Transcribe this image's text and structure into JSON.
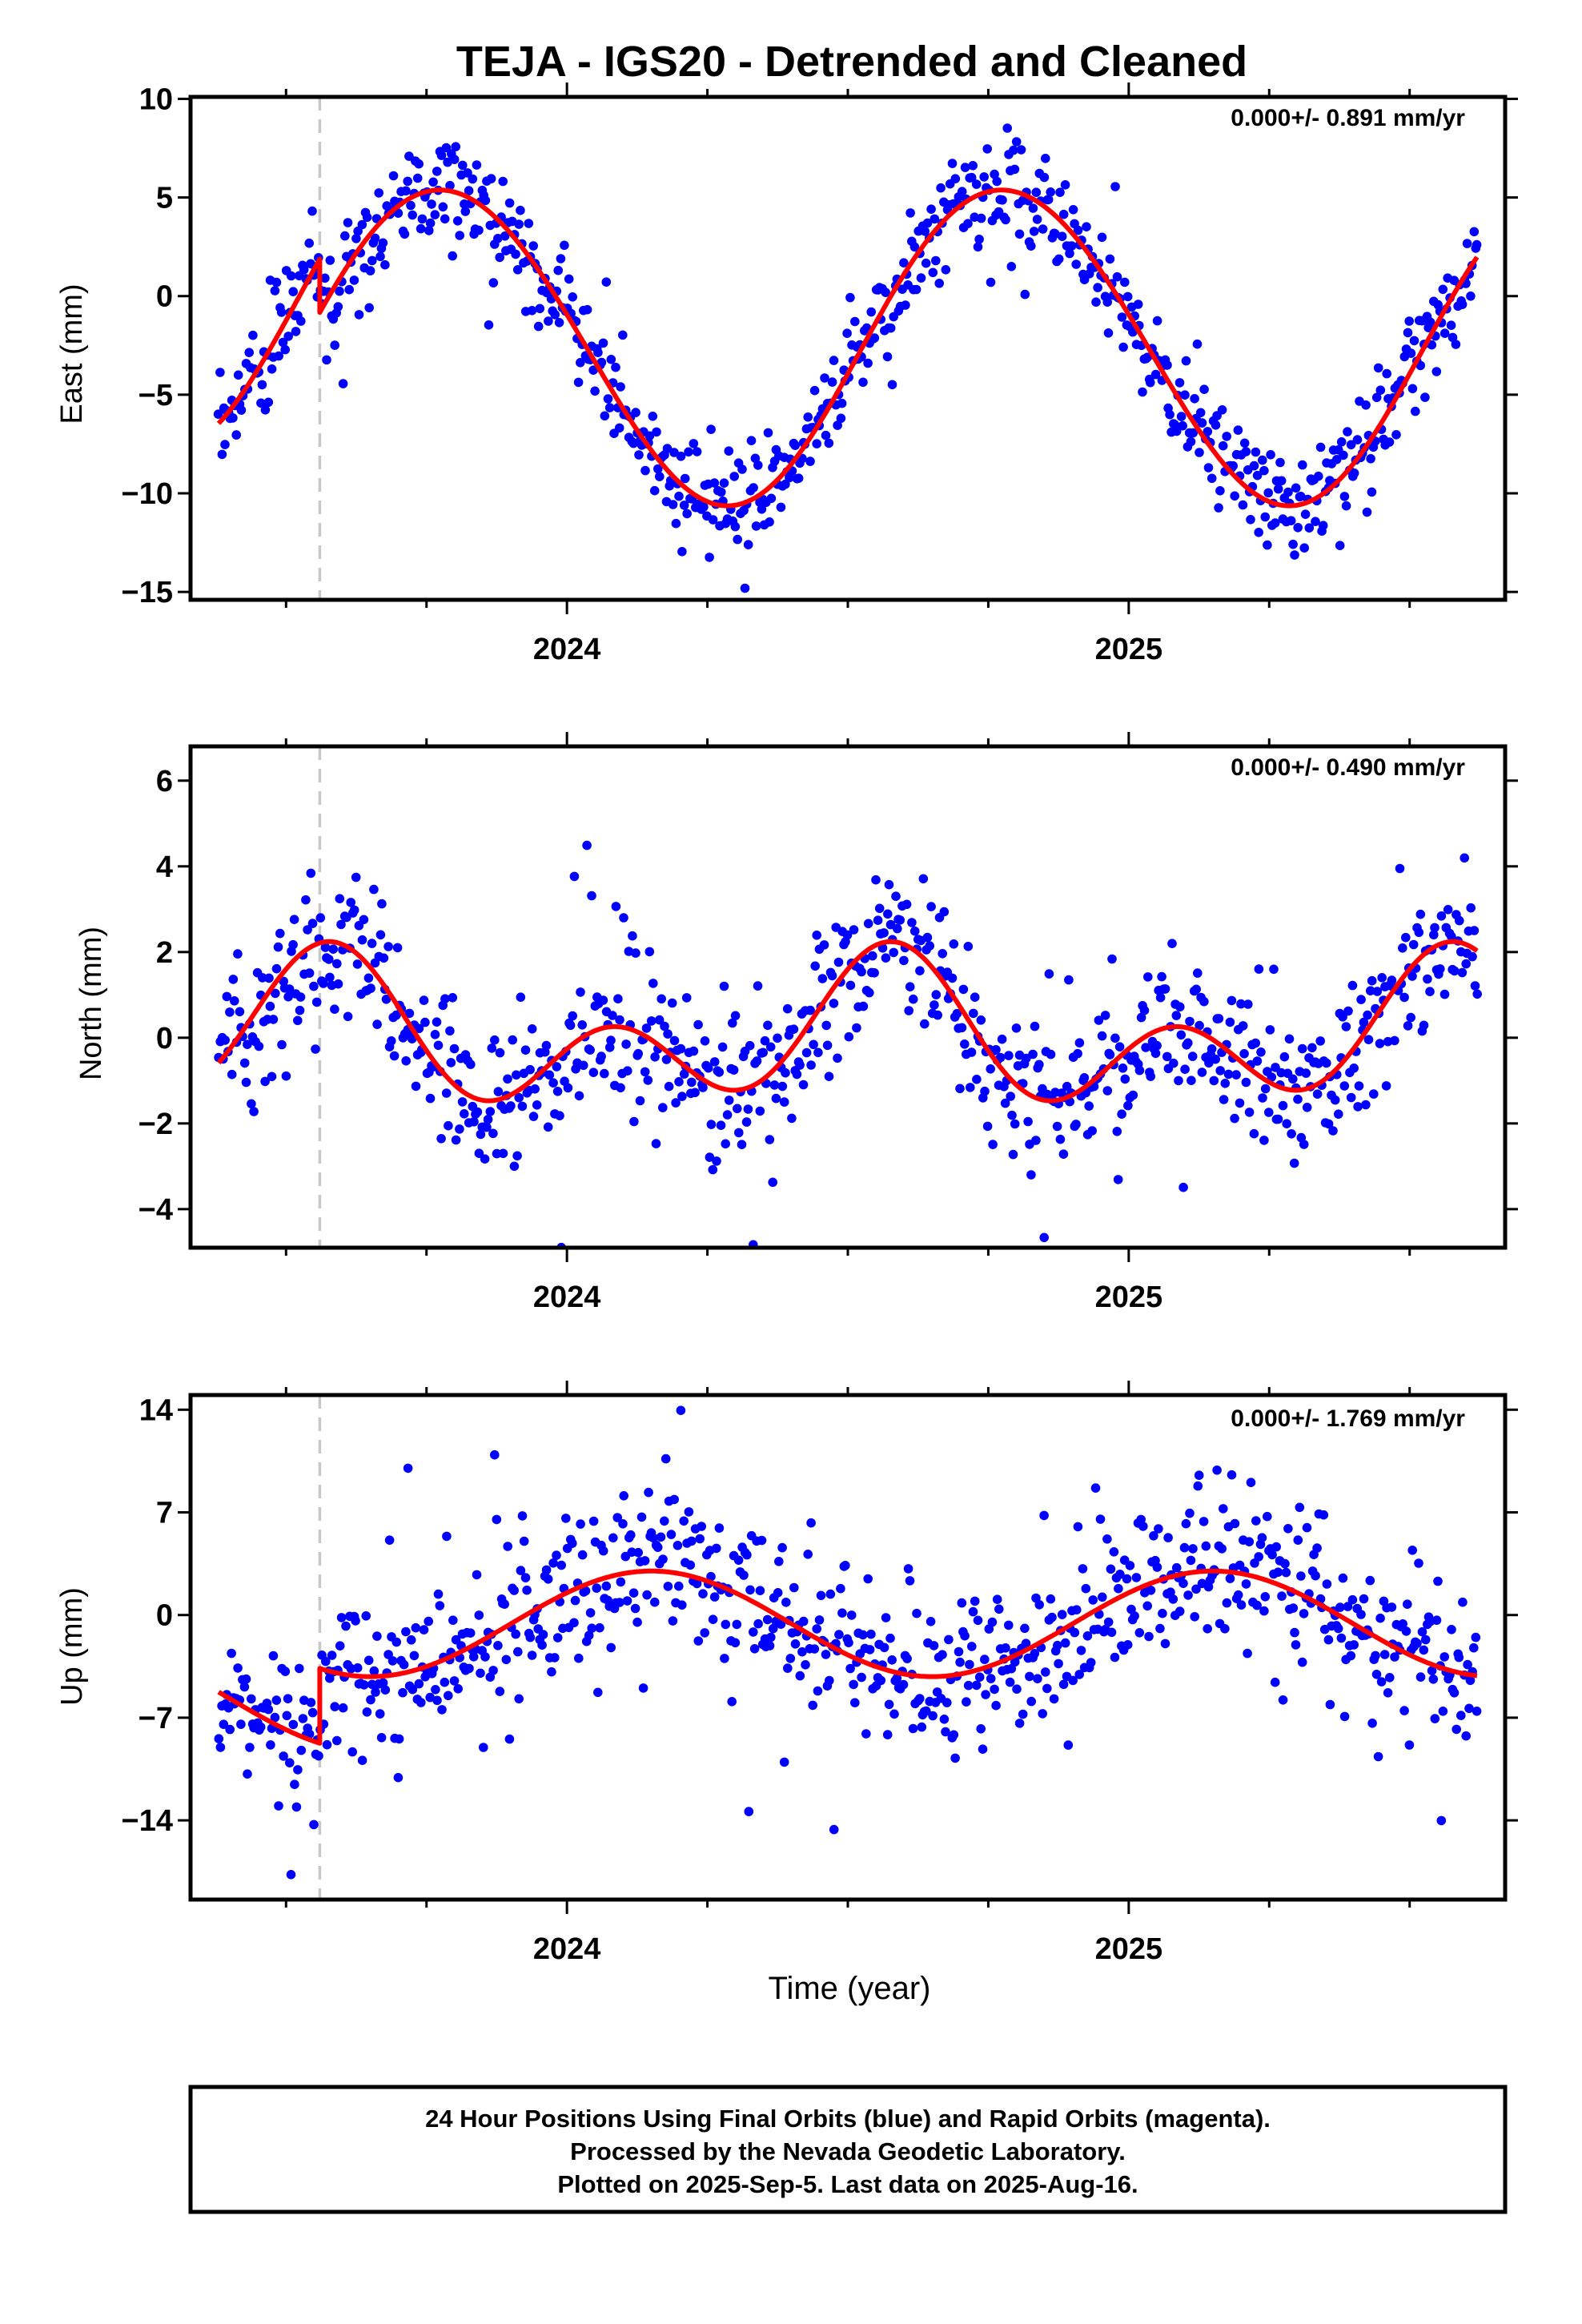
{
  "chart_data": {
    "type": "scatter",
    "title": "TEJA - IGS20 - Detrended and Cleaned",
    "xlabel": "Time (year)",
    "xlim": [
      2023.33,
      2025.67
    ],
    "x_ticks": [
      2024,
      2025
    ],
    "x_tick_labels": [
      "2024",
      "2025"
    ],
    "offset_epoch": 2023.56,
    "data_span": [
      2023.38,
      2025.62
    ],
    "colors": {
      "final_orbits": "#0000ff",
      "model_fit": "#ff0000",
      "offset_line": "#c8c8c8"
    },
    "footer": [
      "24 Hour Positions Using Final Orbits (blue) and Rapid Orbits (magenta).",
      "Processed by the Nevada Geodetic Laboratory.",
      "Plotted on 2025-Sep-5. Last data on 2025-Aug-16."
    ],
    "panels": [
      {
        "name": "east",
        "ylabel": "East (mm)",
        "rate": "0.000+/- 0.891 mm/yr",
        "ylim": [
          -15.4,
          10.1
        ],
        "y_ticks": [
          10,
          5,
          0,
          -5,
          -10,
          -15
        ],
        "y_tick_labels": [
          "10",
          "5",
          "0",
          "−5",
          "−10",
          "−15"
        ],
        "fit_params": {
          "mean": -2.5,
          "a1": 8.0,
          "p1": 2023.78,
          "a2": 0.2,
          "p2": 2023.6,
          "offset": 2.7
        },
        "scatter_sd": 1.3,
        "outlier_rate": 0.025,
        "point_count": 780
      },
      {
        "name": "north",
        "ylabel": "North (mm)",
        "rate": "0.000+/- 0.490 mm/yr",
        "ylim": [
          -4.9,
          6.8
        ],
        "y_ticks": [
          6,
          4,
          2,
          0,
          -2,
          -4
        ],
        "y_tick_labels": [
          "6",
          "4",
          "2",
          "0",
          "−2",
          "−4"
        ],
        "fit_params": {
          "mean": 0.0,
          "a1": 1.0,
          "p1": 2023.56,
          "a2": 1.25,
          "p2": 2023.58,
          "offset": 0.0
        },
        "scatter_sd": 0.9,
        "outlier_rate": 0.035,
        "point_count": 780
      },
      {
        "name": "up",
        "ylabel": "Up (mm)",
        "rate": "0.000+/- 1.769 mm/yr",
        "ylim": [
          -19.4,
          15.0
        ],
        "y_ticks": [
          14,
          7,
          0,
          -7,
          -14
        ],
        "y_tick_labels": [
          "14",
          "7",
          "0",
          "−7",
          "−14"
        ],
        "fit_params": {
          "mean": -0.6,
          "a1": 3.6,
          "p1": 2024.15,
          "a2": 0.0,
          "p2": 2024.0,
          "offset": -5.1
        },
        "scatter_sd": 2.7,
        "outlier_rate": 0.03,
        "point_count": 780
      }
    ]
  }
}
